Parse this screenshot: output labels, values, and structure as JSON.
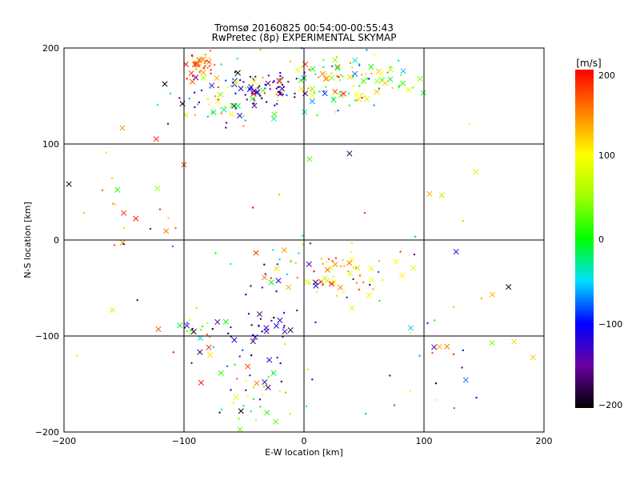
{
  "chart_data": {
    "type": "scatter",
    "title": "Tromsø 20160825 00:54:00-00:55:43",
    "subtitle": "RwPretec (8p) EXPERIMENTAL SKYMAP",
    "xlabel": "E-W location [km]",
    "ylabel": "N-S location [km]",
    "xlim": [
      -200,
      200
    ],
    "ylim": [
      -200,
      200
    ],
    "xticks": [
      "−200",
      "−100",
      "0",
      "100",
      "200"
    ],
    "yticks": [
      "−200",
      "−100",
      "0",
      "100",
      "200"
    ],
    "grid": true,
    "colorbar": {
      "label": "[m/s]",
      "range": [
        -200,
        200
      ],
      "ticks": [
        "−200",
        "−100",
        "0",
        "100",
        "200"
      ]
    },
    "clusters": [
      {
        "x": -87,
        "y": 182,
        "sx": 6,
        "sy": 6,
        "vmin": 120,
        "vmax": 200,
        "n": 45
      },
      {
        "x": -30,
        "y": 158,
        "sx": 14,
        "sy": 10,
        "vmin": -200,
        "vmax": -100,
        "n": 50
      },
      {
        "x": -60,
        "y": 150,
        "sx": 25,
        "sy": 20,
        "vmin": -200,
        "vmax": 200,
        "n": 70
      },
      {
        "x": 10,
        "y": 165,
        "sx": 25,
        "sy": 15,
        "vmin": -100,
        "vmax": 200,
        "n": 60
      },
      {
        "x": 50,
        "y": 170,
        "sx": 20,
        "sy": 15,
        "vmin": -80,
        "vmax": 150,
        "n": 60
      },
      {
        "x": 30,
        "y": -30,
        "sx": 18,
        "sy": 12,
        "vmin": 60,
        "vmax": 200,
        "n": 50
      },
      {
        "x": -20,
        "y": -30,
        "sx": 18,
        "sy": 15,
        "vmin": -200,
        "vmax": 200,
        "n": 25
      },
      {
        "x": -30,
        "y": -90,
        "sx": 15,
        "sy": 15,
        "vmin": -200,
        "vmax": -80,
        "n": 30
      },
      {
        "x": -90,
        "y": -100,
        "sx": 10,
        "sy": 10,
        "vmin": -200,
        "vmax": 200,
        "n": 25
      },
      {
        "x": -40,
        "y": -150,
        "sx": 20,
        "sy": 20,
        "vmin": -200,
        "vmax": 200,
        "n": 45
      },
      {
        "x": -140,
        "y": 30,
        "sx": 25,
        "sy": 30,
        "vmin": 100,
        "vmax": 200,
        "n": 15
      },
      {
        "x": 120,
        "y": -120,
        "sx": 30,
        "sy": 40,
        "vmin": -200,
        "vmax": 200,
        "n": 25
      },
      {
        "x": 0,
        "y": 0,
        "sx": 110,
        "sy": 110,
        "vmin": -200,
        "vmax": 200,
        "n": 60
      }
    ]
  }
}
